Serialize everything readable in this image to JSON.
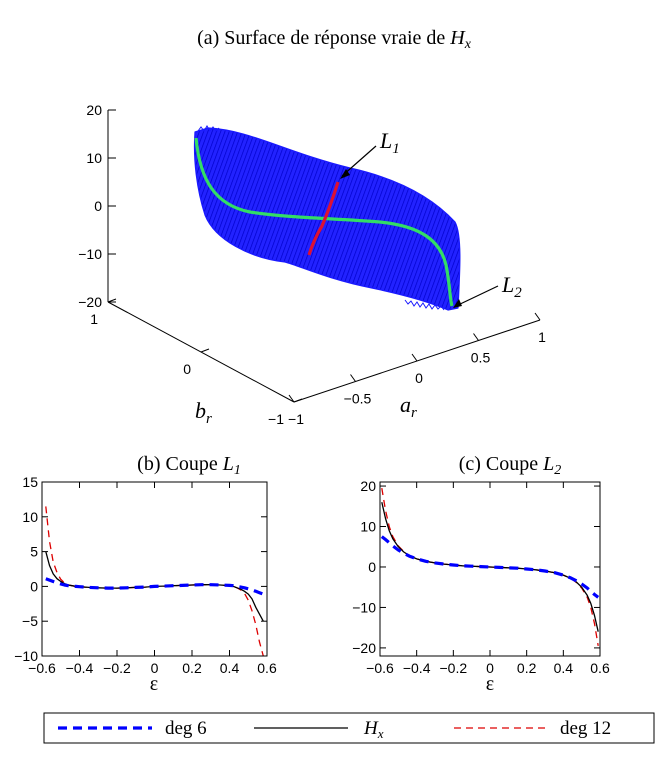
{
  "panel_a": {
    "title_prefix": "(a) Surface de réponse vraie de ",
    "title_var": "H",
    "title_sub": "x",
    "z_ticks": [
      20,
      10,
      0,
      -10,
      -20
    ],
    "b_ticks": [
      1,
      0,
      -1
    ],
    "a_ticks": [
      -1,
      -0.5,
      0,
      0.5,
      1
    ],
    "xlabel_var": "a",
    "xlabel_sub": "r",
    "ylabel_var": "b",
    "ylabel_sub": "r",
    "annotations": [
      {
        "var": "L",
        "sub": "1"
      },
      {
        "var": "L",
        "sub": "2"
      }
    ],
    "colors": {
      "surface": "#1a1aff",
      "curve_L2": "#33dd66",
      "curve_L1": "#dd1133"
    }
  },
  "chart_data": [
    {
      "type": "line",
      "title_prefix": "(b) Coupe ",
      "title_var": "L",
      "title_sub": "1",
      "xlabel": "ε",
      "xlim": [
        -0.6,
        0.6
      ],
      "ylim": [
        -10,
        15
      ],
      "xticks": [
        -0.6,
        -0.4,
        -0.2,
        0,
        0.2,
        0.4,
        0.6
      ],
      "yticks": [
        -10,
        -5,
        0,
        5,
        10,
        15
      ],
      "x": [
        -0.58,
        -0.56,
        -0.54,
        -0.52,
        -0.5,
        -0.48,
        -0.46,
        -0.44,
        -0.42,
        -0.4,
        -0.35,
        -0.3,
        -0.25,
        -0.2,
        -0.15,
        -0.1,
        -0.05,
        0,
        0.05,
        0.1,
        0.15,
        0.2,
        0.25,
        0.3,
        0.35,
        0.4,
        0.42,
        0.44,
        0.46,
        0.48,
        0.5,
        0.52,
        0.54,
        0.56,
        0.58
      ],
      "series": [
        {
          "id": "deg6",
          "color": "#0000ff",
          "style": "thick-dash",
          "values": [
            1.1,
            0.9,
            0.7,
            0.5,
            0.35,
            0.2,
            0.1,
            0.05,
            0.0,
            -0.05,
            -0.15,
            -0.2,
            -0.25,
            -0.25,
            -0.2,
            -0.15,
            -0.1,
            0,
            0.05,
            0.1,
            0.15,
            0.2,
            0.25,
            0.25,
            0.2,
            0.15,
            0.1,
            0.0,
            -0.1,
            -0.2,
            -0.35,
            -0.5,
            -0.7,
            -0.9,
            -1.1
          ]
        },
        {
          "id": "hx",
          "color": "#000000",
          "style": "solid",
          "values": [
            5.0,
            3.0,
            1.8,
            1.1,
            0.7,
            0.4,
            0.2,
            0.1,
            0.0,
            -0.05,
            -0.15,
            -0.2,
            -0.25,
            -0.25,
            -0.2,
            -0.15,
            -0.1,
            0,
            0.05,
            0.1,
            0.15,
            0.2,
            0.25,
            0.25,
            0.2,
            0.1,
            0.0,
            -0.2,
            -0.4,
            -0.7,
            -1.1,
            -1.8,
            -3.0,
            -4.0,
            -5.0
          ]
        },
        {
          "id": "deg12",
          "color": "#dd0000",
          "style": "thin-dash",
          "values": [
            11.5,
            6.5,
            3.5,
            2.0,
            1.0,
            0.5,
            0.2,
            0.1,
            0.0,
            -0.05,
            -0.15,
            -0.2,
            -0.25,
            -0.25,
            -0.2,
            -0.15,
            -0.1,
            0,
            0.05,
            0.1,
            0.15,
            0.2,
            0.25,
            0.25,
            0.2,
            0.1,
            0.0,
            -0.2,
            -0.5,
            -1.0,
            -2.0,
            -3.5,
            -5.5,
            -8.0,
            -10.0
          ]
        }
      ]
    },
    {
      "type": "line",
      "title_prefix": "(c) Coupe ",
      "title_var": "L",
      "title_sub": "2",
      "xlabel": "ε",
      "xlim": [
        -0.6,
        0.6
      ],
      "ylim": [
        -22,
        21
      ],
      "xticks": [
        -0.6,
        -0.4,
        -0.2,
        0,
        0.2,
        0.4,
        0.6
      ],
      "yticks": [
        -20,
        -10,
        0,
        10,
        20
      ],
      "x": [
        -0.59,
        -0.57,
        -0.55,
        -0.53,
        -0.5,
        -0.47,
        -0.44,
        -0.4,
        -0.35,
        -0.3,
        -0.25,
        -0.2,
        -0.15,
        -0.1,
        -0.05,
        0,
        0.05,
        0.1,
        0.15,
        0.2,
        0.25,
        0.3,
        0.35,
        0.4,
        0.44,
        0.47,
        0.5,
        0.53,
        0.55,
        0.57,
        0.59
      ],
      "series": [
        {
          "id": "deg6",
          "color": "#0000ff",
          "style": "thick-dash",
          "values": [
            7.5,
            6.8,
            6.0,
            5.2,
            4.2,
            3.4,
            2.7,
            2.0,
            1.4,
            1.0,
            0.7,
            0.5,
            0.3,
            0.2,
            0.1,
            0,
            -0.1,
            -0.2,
            -0.3,
            -0.5,
            -0.7,
            -1.0,
            -1.4,
            -2.0,
            -2.7,
            -3.4,
            -4.2,
            -5.2,
            -6.0,
            -6.8,
            -7.5
          ]
        },
        {
          "id": "hx",
          "color": "#000000",
          "style": "solid",
          "values": [
            16.0,
            12.0,
            9.0,
            7.0,
            5.0,
            3.7,
            2.8,
            2.0,
            1.4,
            1.0,
            0.7,
            0.5,
            0.3,
            0.2,
            0.1,
            0,
            -0.1,
            -0.2,
            -0.3,
            -0.5,
            -0.7,
            -1.0,
            -1.4,
            -2.0,
            -2.8,
            -3.7,
            -5.0,
            -7.0,
            -9.0,
            -12.0,
            -16.0
          ]
        },
        {
          "id": "deg12",
          "color": "#dd0000",
          "style": "thin-dash",
          "values": [
            19.5,
            14.0,
            10.0,
            7.5,
            5.2,
            3.8,
            2.8,
            2.0,
            1.4,
            1.0,
            0.7,
            0.5,
            0.3,
            0.2,
            0.1,
            0,
            -0.1,
            -0.2,
            -0.3,
            -0.5,
            -0.7,
            -1.0,
            -1.4,
            -2.0,
            -2.8,
            -3.8,
            -5.2,
            -7.5,
            -10.0,
            -14.0,
            -19.5
          ]
        }
      ]
    }
  ],
  "legend": [
    {
      "id": "deg6",
      "label": "deg 6",
      "color": "#0000ff",
      "style": "thick-dash"
    },
    {
      "id": "hx",
      "label_var": "H",
      "label_sub": "x",
      "color": "#000000",
      "style": "solid"
    },
    {
      "id": "deg12",
      "label": "deg 12",
      "color": "#dd0000",
      "style": "thin-dash"
    }
  ]
}
